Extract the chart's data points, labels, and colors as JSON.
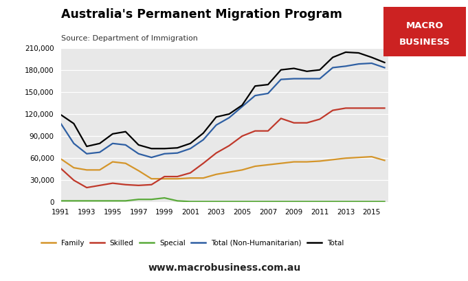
{
  "title": "Australia's Permanent Migration Program",
  "subtitle": "Source: Department of Immigration",
  "background_color": "#e8e8e8",
  "fig_facecolor": "#ffffff",
  "ylim": [
    0,
    210000
  ],
  "yticks": [
    0,
    30000,
    60000,
    90000,
    120000,
    150000,
    180000,
    210000
  ],
  "years": [
    1991,
    1992,
    1993,
    1994,
    1995,
    1996,
    1997,
    1998,
    1999,
    2000,
    2001,
    2002,
    2003,
    2004,
    2005,
    2006,
    2007,
    2008,
    2009,
    2010,
    2011,
    2012,
    2013,
    2014,
    2015,
    2016
  ],
  "family": [
    59000,
    47000,
    44000,
    44000,
    55000,
    53000,
    43000,
    32000,
    32000,
    32000,
    33000,
    33000,
    38000,
    41000,
    44000,
    49000,
    51000,
    53000,
    55000,
    55000,
    56000,
    58000,
    60000,
    61000,
    62000,
    57000
  ],
  "skilled": [
    46000,
    30000,
    20000,
    23000,
    26000,
    24000,
    23000,
    24000,
    35000,
    35000,
    40000,
    53000,
    67000,
    77000,
    90000,
    97000,
    97000,
    114000,
    108000,
    108000,
    113000,
    125000,
    128000,
    128000,
    128000,
    128000
  ],
  "special": [
    2000,
    2000,
    2000,
    2000,
    2000,
    2000,
    4000,
    4000,
    6000,
    2000,
    1000,
    1000,
    1000,
    1000,
    1000,
    1000,
    1000,
    1000,
    1000,
    1000,
    1000,
    1000,
    1000,
    1000,
    1000,
    1000
  ],
  "total_non_hum": [
    107000,
    80000,
    66000,
    68000,
    80000,
    78000,
    66000,
    61000,
    66000,
    67000,
    73000,
    85000,
    105000,
    115000,
    130000,
    145000,
    148000,
    167000,
    168000,
    168000,
    168000,
    183000,
    185000,
    188000,
    189000,
    183000
  ],
  "total": [
    119000,
    107000,
    76000,
    80000,
    93000,
    96000,
    78000,
    73000,
    73000,
    74000,
    80000,
    94000,
    116000,
    120000,
    132000,
    158000,
    160000,
    180000,
    182000,
    178000,
    180000,
    197000,
    204000,
    203000,
    197000,
    190000
  ],
  "family_color": "#d4952a",
  "skilled_color": "#c0392b",
  "special_color": "#5aaa3a",
  "total_non_hum_color": "#2e5fa3",
  "total_color": "#000000",
  "logo_bg": "#cc2222",
  "logo_text1": "MACRO",
  "logo_text2": "BUSINESS",
  "watermark": "www.macrobusiness.com.au"
}
